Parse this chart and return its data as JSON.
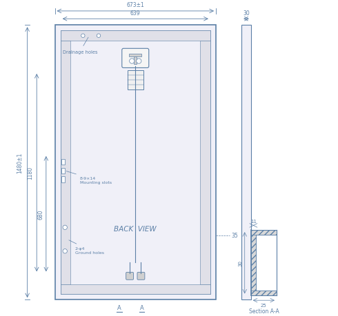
{
  "bg_color": "#ffffff",
  "line_color": "#5b7fa6",
  "text_color": "#5b7fa6",
  "figsize": [
    4.9,
    4.6
  ],
  "dpi": 100,
  "dimensions": {
    "total_width": "673±1",
    "inner_width": "639",
    "total_height": "1480±1",
    "height_1180": "1180",
    "height_680": "680",
    "side_width": "30",
    "dim_35": "35",
    "section_11": "11",
    "section_30": "30",
    "section_25": "25"
  },
  "labels": {
    "drainage": "Drainage holes",
    "mounting": "8-9×14\nMounting slots",
    "ground": "2-φ4\nGround holes",
    "back_view": "BACK  VIEW",
    "section": "Section A-A",
    "cut_A": "A"
  }
}
